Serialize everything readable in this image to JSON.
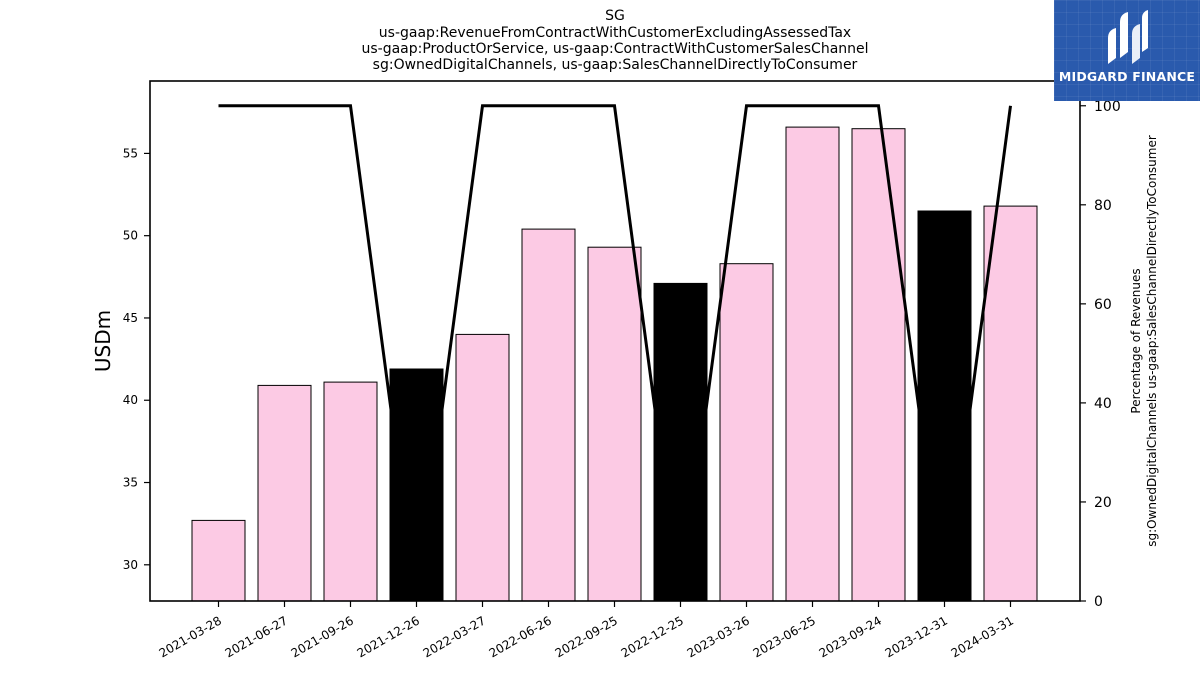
{
  "brand": {
    "name": "MIDGARD FINANCE",
    "color": "#2a5aad"
  },
  "chart_data": {
    "type": "bar",
    "title_lines": [
      "SG",
      "us-gaap:RevenueFromContractWithCustomerExcludingAssessedTax",
      "us-gaap:ProductOrService, us-gaap:ContractWithCustomerSalesChannel",
      "sg:OwnedDigitalChannels, us-gaap:SalesChannelDirectlyToConsumer"
    ],
    "categories": [
      "2021-03-28",
      "2021-06-27",
      "2021-09-26",
      "2021-12-26",
      "2022-03-27",
      "2022-06-26",
      "2022-09-25",
      "2022-12-25",
      "2023-03-26",
      "2023-06-25",
      "2023-09-24",
      "2023-12-31",
      "2024-03-31"
    ],
    "values": [
      32.7,
      40.9,
      41.1,
      41.9,
      44.0,
      50.4,
      49.3,
      47.1,
      48.3,
      56.6,
      56.5,
      51.5,
      51.8
    ],
    "bar_colors": [
      "#fccae4",
      "#fccae4",
      "#fccae4",
      "#000000",
      "#fccae4",
      "#fccae4",
      "#fccae4",
      "#000000",
      "#fccae4",
      "#fccae4",
      "#fccae4",
      "#000000",
      "#fccae4"
    ],
    "ylabel": "USDm",
    "ylim": [
      27.8,
      59.4
    ],
    "yticks": [
      30,
      35,
      40,
      45,
      50,
      55
    ],
    "secondary": {
      "type": "line",
      "ylabel_lines": [
        "Percentage of Revenues",
        "sg:OwnedDigitalChannels us-gaap:SalesChannelDirectlyToConsumer"
      ],
      "values": [
        100,
        100,
        100,
        0,
        100,
        100,
        100,
        0,
        100,
        100,
        100,
        0,
        100
      ],
      "ylim": [
        0,
        105
      ],
      "yticks": [
        0,
        20,
        40,
        60,
        80,
        100
      ],
      "color": "#000000"
    }
  }
}
